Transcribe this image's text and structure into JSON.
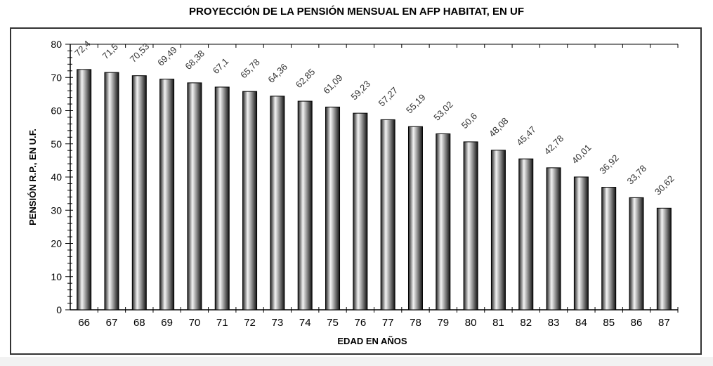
{
  "chart_data": {
    "type": "bar",
    "title": "PROYECCIÓN DE LA PENSIÓN MENSUAL EN AFP HABITAT, EN UF",
    "xlabel": "EDAD EN AÑOS",
    "ylabel": "PENSIÓN R.P., EN U.F.",
    "ylim": [
      0,
      80
    ],
    "yticks": [
      0,
      10,
      20,
      30,
      40,
      50,
      60,
      70,
      80
    ],
    "categories": [
      "66",
      "67",
      "68",
      "69",
      "70",
      "71",
      "72",
      "73",
      "74",
      "75",
      "76",
      "77",
      "78",
      "79",
      "80",
      "81",
      "82",
      "83",
      "84",
      "85",
      "86",
      "87"
    ],
    "values": [
      72.4,
      71.5,
      70.53,
      69.49,
      68.38,
      67.1,
      65.78,
      64.36,
      62.85,
      61.09,
      59.23,
      57.27,
      55.19,
      53.02,
      50.6,
      48.08,
      45.47,
      42.78,
      40.01,
      36.92,
      33.78,
      30.62
    ],
    "data_labels": [
      "72,4",
      "71,5",
      "70,53",
      "69,49",
      "68,38",
      "67,1",
      "65,78",
      "64,36",
      "62,85",
      "61,09",
      "59,23",
      "57,27",
      "55,19",
      "53,02",
      "50,6",
      "48,08",
      "45,47",
      "42,78",
      "40,01",
      "36,92",
      "33,78",
      "30,62"
    ],
    "grid": false,
    "legend": "none"
  }
}
